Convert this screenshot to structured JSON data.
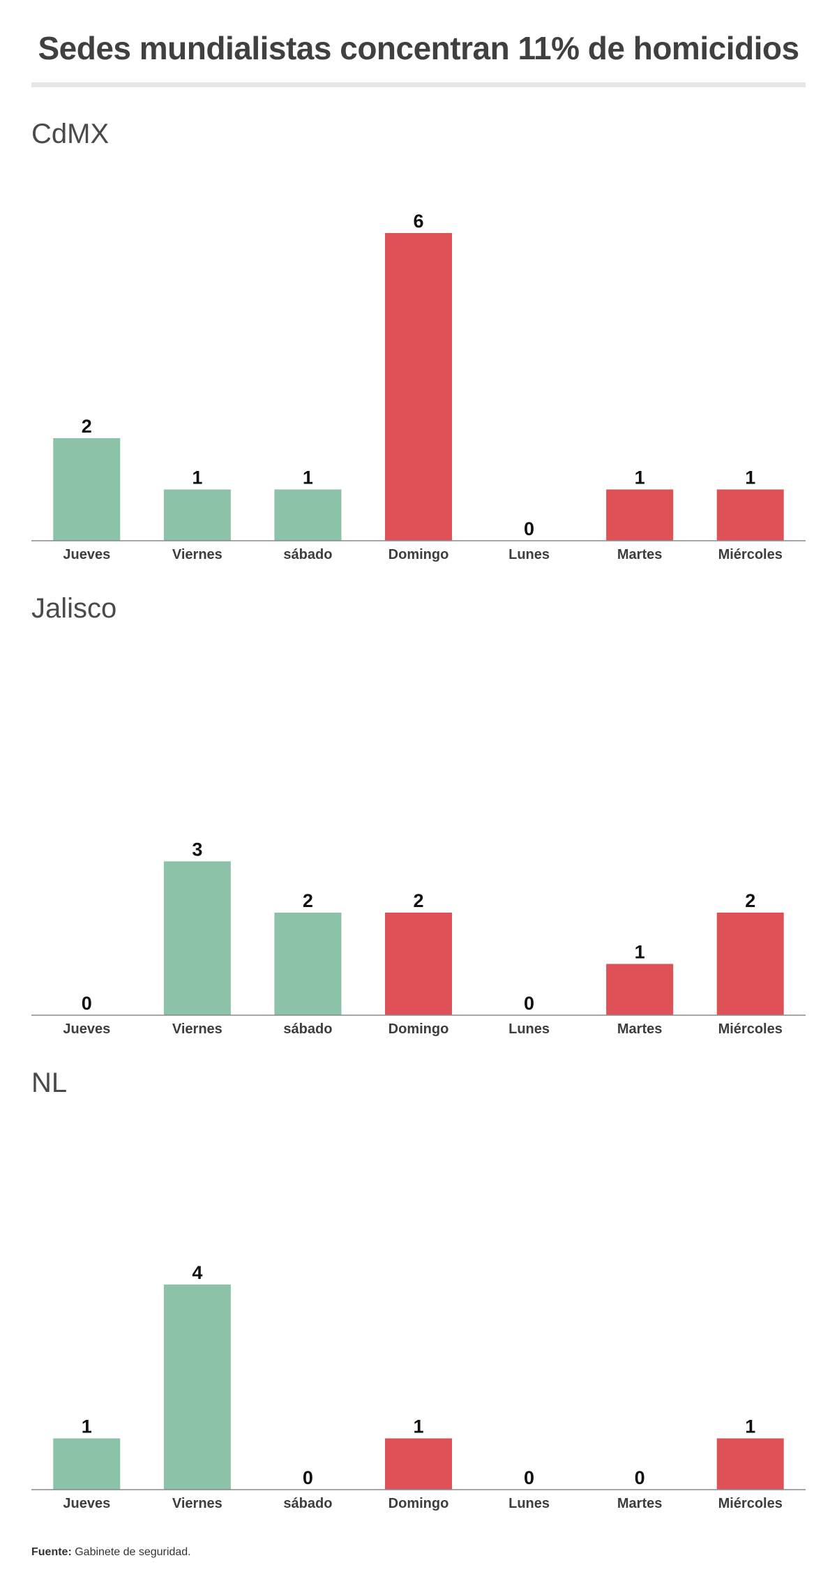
{
  "title": "Sedes mundialistas concentran 11% de homicidios",
  "source": {
    "label": "Fuente:",
    "text": "Gabinete de seguridad."
  },
  "colors": {
    "before": "#8cc2a7",
    "after": "#de5257",
    "axis": "#8a8a8a",
    "rule": "#e6e6e6"
  },
  "chart_data": [
    {
      "type": "bar",
      "title": "CdMX",
      "categories": [
        "Jueves",
        "Viernes",
        "sábado",
        "Domingo",
        "Lunes",
        "Martes",
        "Miércoles"
      ],
      "values": [
        2,
        1,
        1,
        6,
        0,
        1,
        1
      ],
      "bar_colors": [
        "#8cc2a7",
        "#8cc2a7",
        "#8cc2a7",
        "#de5257",
        "#de5257",
        "#de5257",
        "#de5257"
      ],
      "ylim": [
        0,
        6.8
      ],
      "grid": false,
      "data_labels": true
    },
    {
      "type": "bar",
      "title": "Jalisco",
      "categories": [
        "Jueves",
        "Viernes",
        "sábado",
        "Domingo",
        "Lunes",
        "Martes",
        "Miércoles"
      ],
      "values": [
        0,
        3,
        2,
        2,
        0,
        1,
        2
      ],
      "bar_colors": [
        "#8cc2a7",
        "#8cc2a7",
        "#8cc2a7",
        "#de5257",
        "#de5257",
        "#de5257",
        "#de5257"
      ],
      "ylim": [
        0,
        6.8
      ],
      "grid": false,
      "data_labels": true
    },
    {
      "type": "bar",
      "title": "NL",
      "categories": [
        "Jueves",
        "Viernes",
        "sábado",
        "Domingo",
        "Lunes",
        "Martes",
        "Miércoles"
      ],
      "values": [
        1,
        4,
        0,
        1,
        0,
        0,
        1
      ],
      "bar_colors": [
        "#8cc2a7",
        "#8cc2a7",
        "#8cc2a7",
        "#de5257",
        "#de5257",
        "#de5257",
        "#de5257"
      ],
      "ylim": [
        0,
        6.8
      ],
      "grid": false,
      "data_labels": true
    }
  ]
}
